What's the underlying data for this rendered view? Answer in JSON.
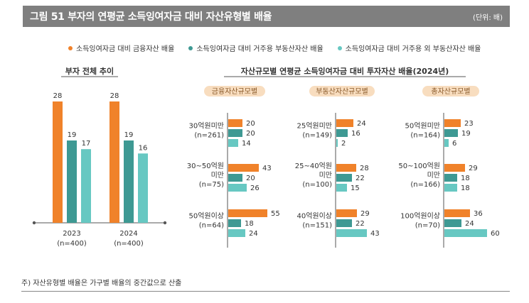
{
  "header": {
    "title": "그림 51  부자의 연평균 소득잉여자금 대비 자산유형별 배율",
    "unit": "(단위: 배)"
  },
  "colors": {
    "orange": "#F0822A",
    "teal": "#3E9993",
    "mint": "#67C8C2",
    "header_bg": "#7F7F7F",
    "pill_bg": "#F8DDBF",
    "pill_text": "#8A5A2A"
  },
  "legend": [
    {
      "label": "소득잉여자금 대비 금융자산 배율",
      "color": "#F0822A"
    },
    {
      "label": "소득잉여자금 대비 거주용 부동산자산 배율",
      "color": "#3E9993"
    },
    {
      "label": "소득잉여자금 대비 거주용 외 부동산자산 배율",
      "color": "#67C8C2"
    }
  ],
  "chart_data": [
    {
      "type": "bar",
      "title": "부자 전체 추이",
      "categories": [
        "2023",
        "2024"
      ],
      "category_sub": [
        "(n=400)",
        "(n=400)"
      ],
      "series": [
        {
          "name": "소득잉여자금 대비 금융자산 배율",
          "values": [
            28,
            28
          ]
        },
        {
          "name": "소득잉여자금 대비 거주용 부동산자산 배율",
          "values": [
            19,
            19
          ]
        },
        {
          "name": "소득잉여자금 대비 거주용 외 부동산자산 배율",
          "values": [
            17,
            16
          ]
        }
      ]
    },
    {
      "type": "bar",
      "orientation": "horizontal",
      "title": "자산규모별 연평균 소득잉여자금 대비 투자자산 배율(2024년)",
      "panels": [
        {
          "label": "금융자산규모별",
          "groups": [
            {
              "label": [
                "30억원미만",
                "(n=261)"
              ],
              "values": [
                20,
                20,
                14
              ]
            },
            {
              "label": [
                "30~50억원",
                "미만",
                "(n=75)"
              ],
              "values": [
                43,
                20,
                26
              ]
            },
            {
              "label": [
                "50억원이상",
                "(n=64)"
              ],
              "values": [
                55,
                18,
                24
              ]
            }
          ]
        },
        {
          "label": "부동산자산규모별",
          "groups": [
            {
              "label": [
                "25억원미만",
                "(n=149)"
              ],
              "values": [
                24,
                16,
                2
              ]
            },
            {
              "label": [
                "25~40억원",
                "미만",
                "(n=100)"
              ],
              "values": [
                28,
                22,
                15
              ]
            },
            {
              "label": [
                "40억원이상",
                "(n=151)"
              ],
              "values": [
                29,
                22,
                43
              ]
            }
          ]
        },
        {
          "label": "총자산규모별",
          "groups": [
            {
              "label": [
                "50억원미만",
                "(n=164)"
              ],
              "values": [
                23,
                19,
                6
              ]
            },
            {
              "label": [
                "50~100억원",
                "미만",
                "(n=166)"
              ],
              "values": [
                29,
                18,
                18
              ]
            },
            {
              "label": [
                "100억원이상",
                "(n=70)"
              ],
              "values": [
                36,
                24,
                60
              ]
            }
          ]
        }
      ]
    }
  ],
  "footnote": "주) 자산유형별 배율은 가구별 배율의 중간값으로 산출"
}
